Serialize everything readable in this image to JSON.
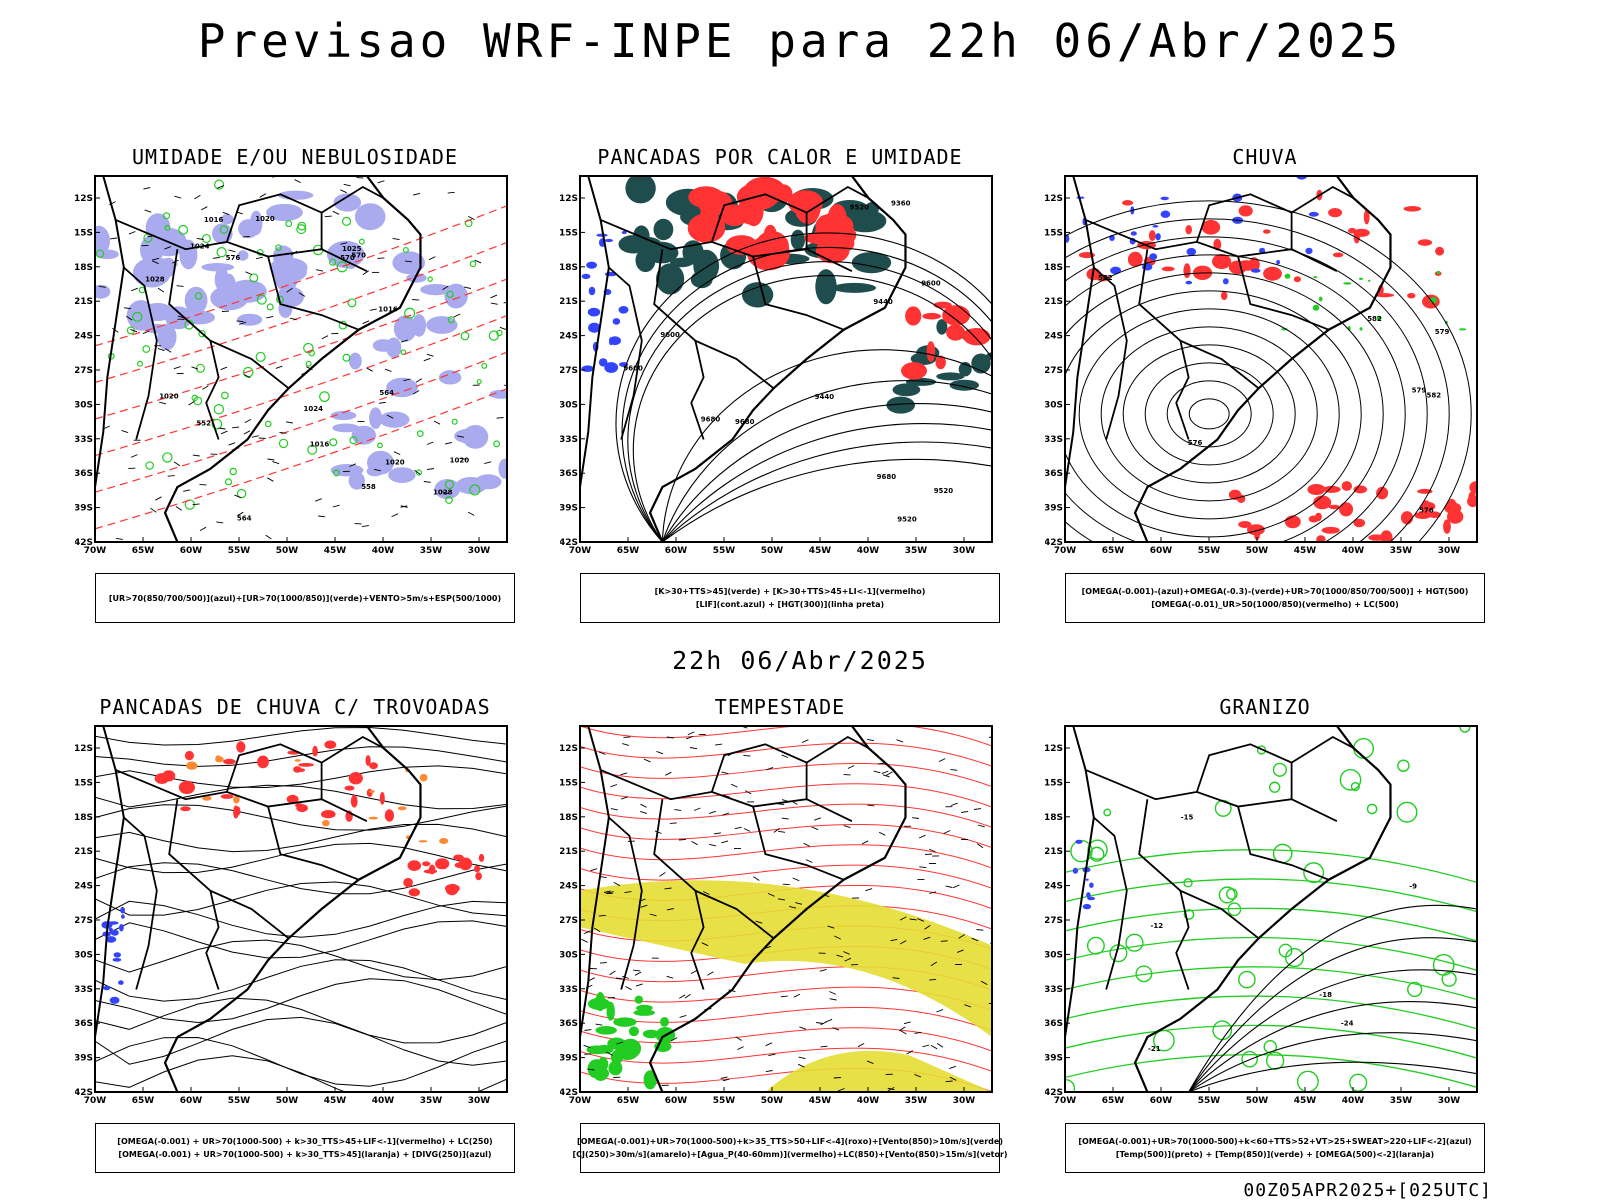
{
  "title": "Previsao WRF-INPE  para 22h 06/Abr/2025",
  "mid_label": "22h 06/Abr/2025",
  "footer": "00Z05APR2025+[025UTC]",
  "axes": {
    "lat_labels": [
      "12S",
      "15S",
      "18S",
      "21S",
      "24S",
      "27S",
      "30S",
      "33S",
      "36S",
      "39S",
      "42S"
    ],
    "lon_labels": [
      "70W",
      "65W",
      "60W",
      "55W",
      "50W",
      "45W",
      "40W",
      "35W",
      "30W"
    ]
  },
  "colors": {
    "blue": "#3344ff",
    "green": "#22cc22",
    "red": "#ff3333",
    "lavender": "#aaaaee",
    "darkteal": "#1f4d4d",
    "yellow": "#e6dd33",
    "orange": "#ff8833",
    "black": "#000000"
  },
  "panels": [
    {
      "id": "umidade",
      "title": "UMIDADE E/OU NEBULOSIDADE",
      "legend": [
        "[UR>70(850/700/500)](azul)+[UR>70(1000/850)](verde)+VENTO>5m/s+ESP(500/1000)"
      ],
      "contour_labels": [
        "1016",
        "1016",
        "1016",
        "1020",
        "1020",
        "1020",
        "1024",
        "1024",
        "1028",
        "1028",
        "1020",
        "1025",
        "570",
        "564",
        "558",
        "552",
        "576",
        "570",
        "564"
      ]
    },
    {
      "id": "pancadas-calor",
      "title": "PANCADAS POR CALOR E UMIDADE",
      "legend": [
        "[K>30+TTS>45](verde) + [K>30+TTS>45+LI<-1](vermelho)",
        "[LIF](cont.azul) + [HGT(300)](linha preta)"
      ],
      "contour_labels": [
        "9680",
        "9680",
        "9600",
        "9600",
        "9520",
        "9520",
        "9440",
        "9440",
        "9360",
        "9680",
        "9520",
        "9600"
      ]
    },
    {
      "id": "chuva",
      "title": "CHUVA",
      "legend": [
        "[OMEGA(-0.001)-(azul)+OMEGA(-0.3)-(verde)+UR>70(1000/850/700/500)] + HGT(500)",
        "[OMEGA(-0.01)_UR>50(1000/850)(vermelho) + LC(500)"
      ],
      "contour_labels": [
        "582",
        "579",
        "576",
        "579",
        "582",
        "576",
        "582"
      ]
    },
    {
      "id": "trovoadas",
      "title": "PANCADAS DE CHUVA C/ TROVOADAS",
      "legend": [
        "[OMEGA(-0.001) + UR>70(1000-500) + k>30_TTS>45+LIF<-1](vermelho) + LC(250)",
        "[OMEGA(-0.001) + UR>70(1000-500) + k>30_TTS>45](laranja) + [DIVG(250)](azul)"
      ],
      "contour_labels": []
    },
    {
      "id": "tempestade",
      "title": "TEMPESTADE",
      "legend": [
        "[OMEGA(-0.001)+UR>70(1000-500)+k>35_TTS>50+LIF<-4](roxo)+[Vento(850)>10m/s](verde)",
        "[CJ(250)>30m/s](amarelo)+[Agua_P(40-60mm)](vermelho)+LC(850)+[Vento(850)>15m/s](vetor)"
      ],
      "contour_labels": []
    },
    {
      "id": "granizo",
      "title": "GRANIZO",
      "legend": [
        "[OMEGA(-0.001)+UR>70(1000-500)+k<60+TTS>52+VT>25+SWEAT>220+LIF<-2](azul)",
        "[Temp(500)](preto) + [Temp(850)](verde) + [OMEGA(500)<-2](laranja)"
      ],
      "contour_labels": [
        "-12",
        "-15",
        "-18",
        "-21",
        "-24",
        "-9"
      ]
    }
  ]
}
